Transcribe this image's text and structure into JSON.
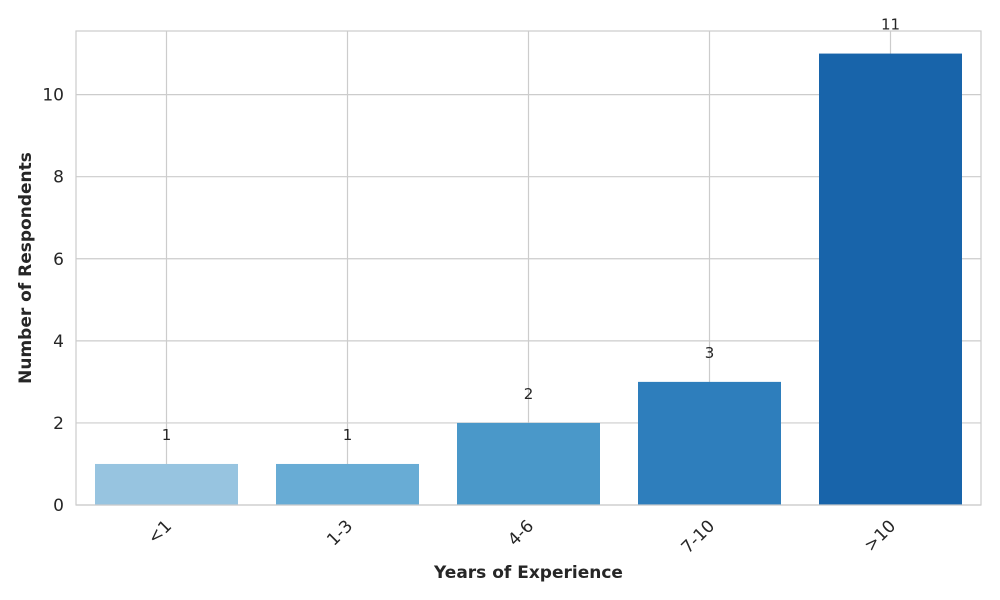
{
  "chart_data": {
    "type": "bar",
    "categories": [
      "<1",
      "1-3",
      "4-6",
      "7-10",
      ">10"
    ],
    "values": [
      1,
      1,
      2,
      3,
      11
    ],
    "data_labels": [
      "1",
      "1",
      "2",
      "3",
      "11"
    ],
    "colors": [
      "#97c4e0",
      "#68acd5",
      "#4a98c9",
      "#2e7ebc",
      "#1864aa"
    ],
    "xlabel": "Years of Experience",
    "ylabel": "Number of Respondents",
    "ylim": [
      0,
      11.55
    ],
    "yticks": [
      0,
      2,
      4,
      6,
      8,
      10
    ],
    "ytick_labels": [
      "0",
      "2",
      "4",
      "6",
      "8",
      "10"
    ],
    "grid": true,
    "grid_color": "#cccccc",
    "spine_color": "#cccccc",
    "xtick_rotation": "45 degrees"
  }
}
